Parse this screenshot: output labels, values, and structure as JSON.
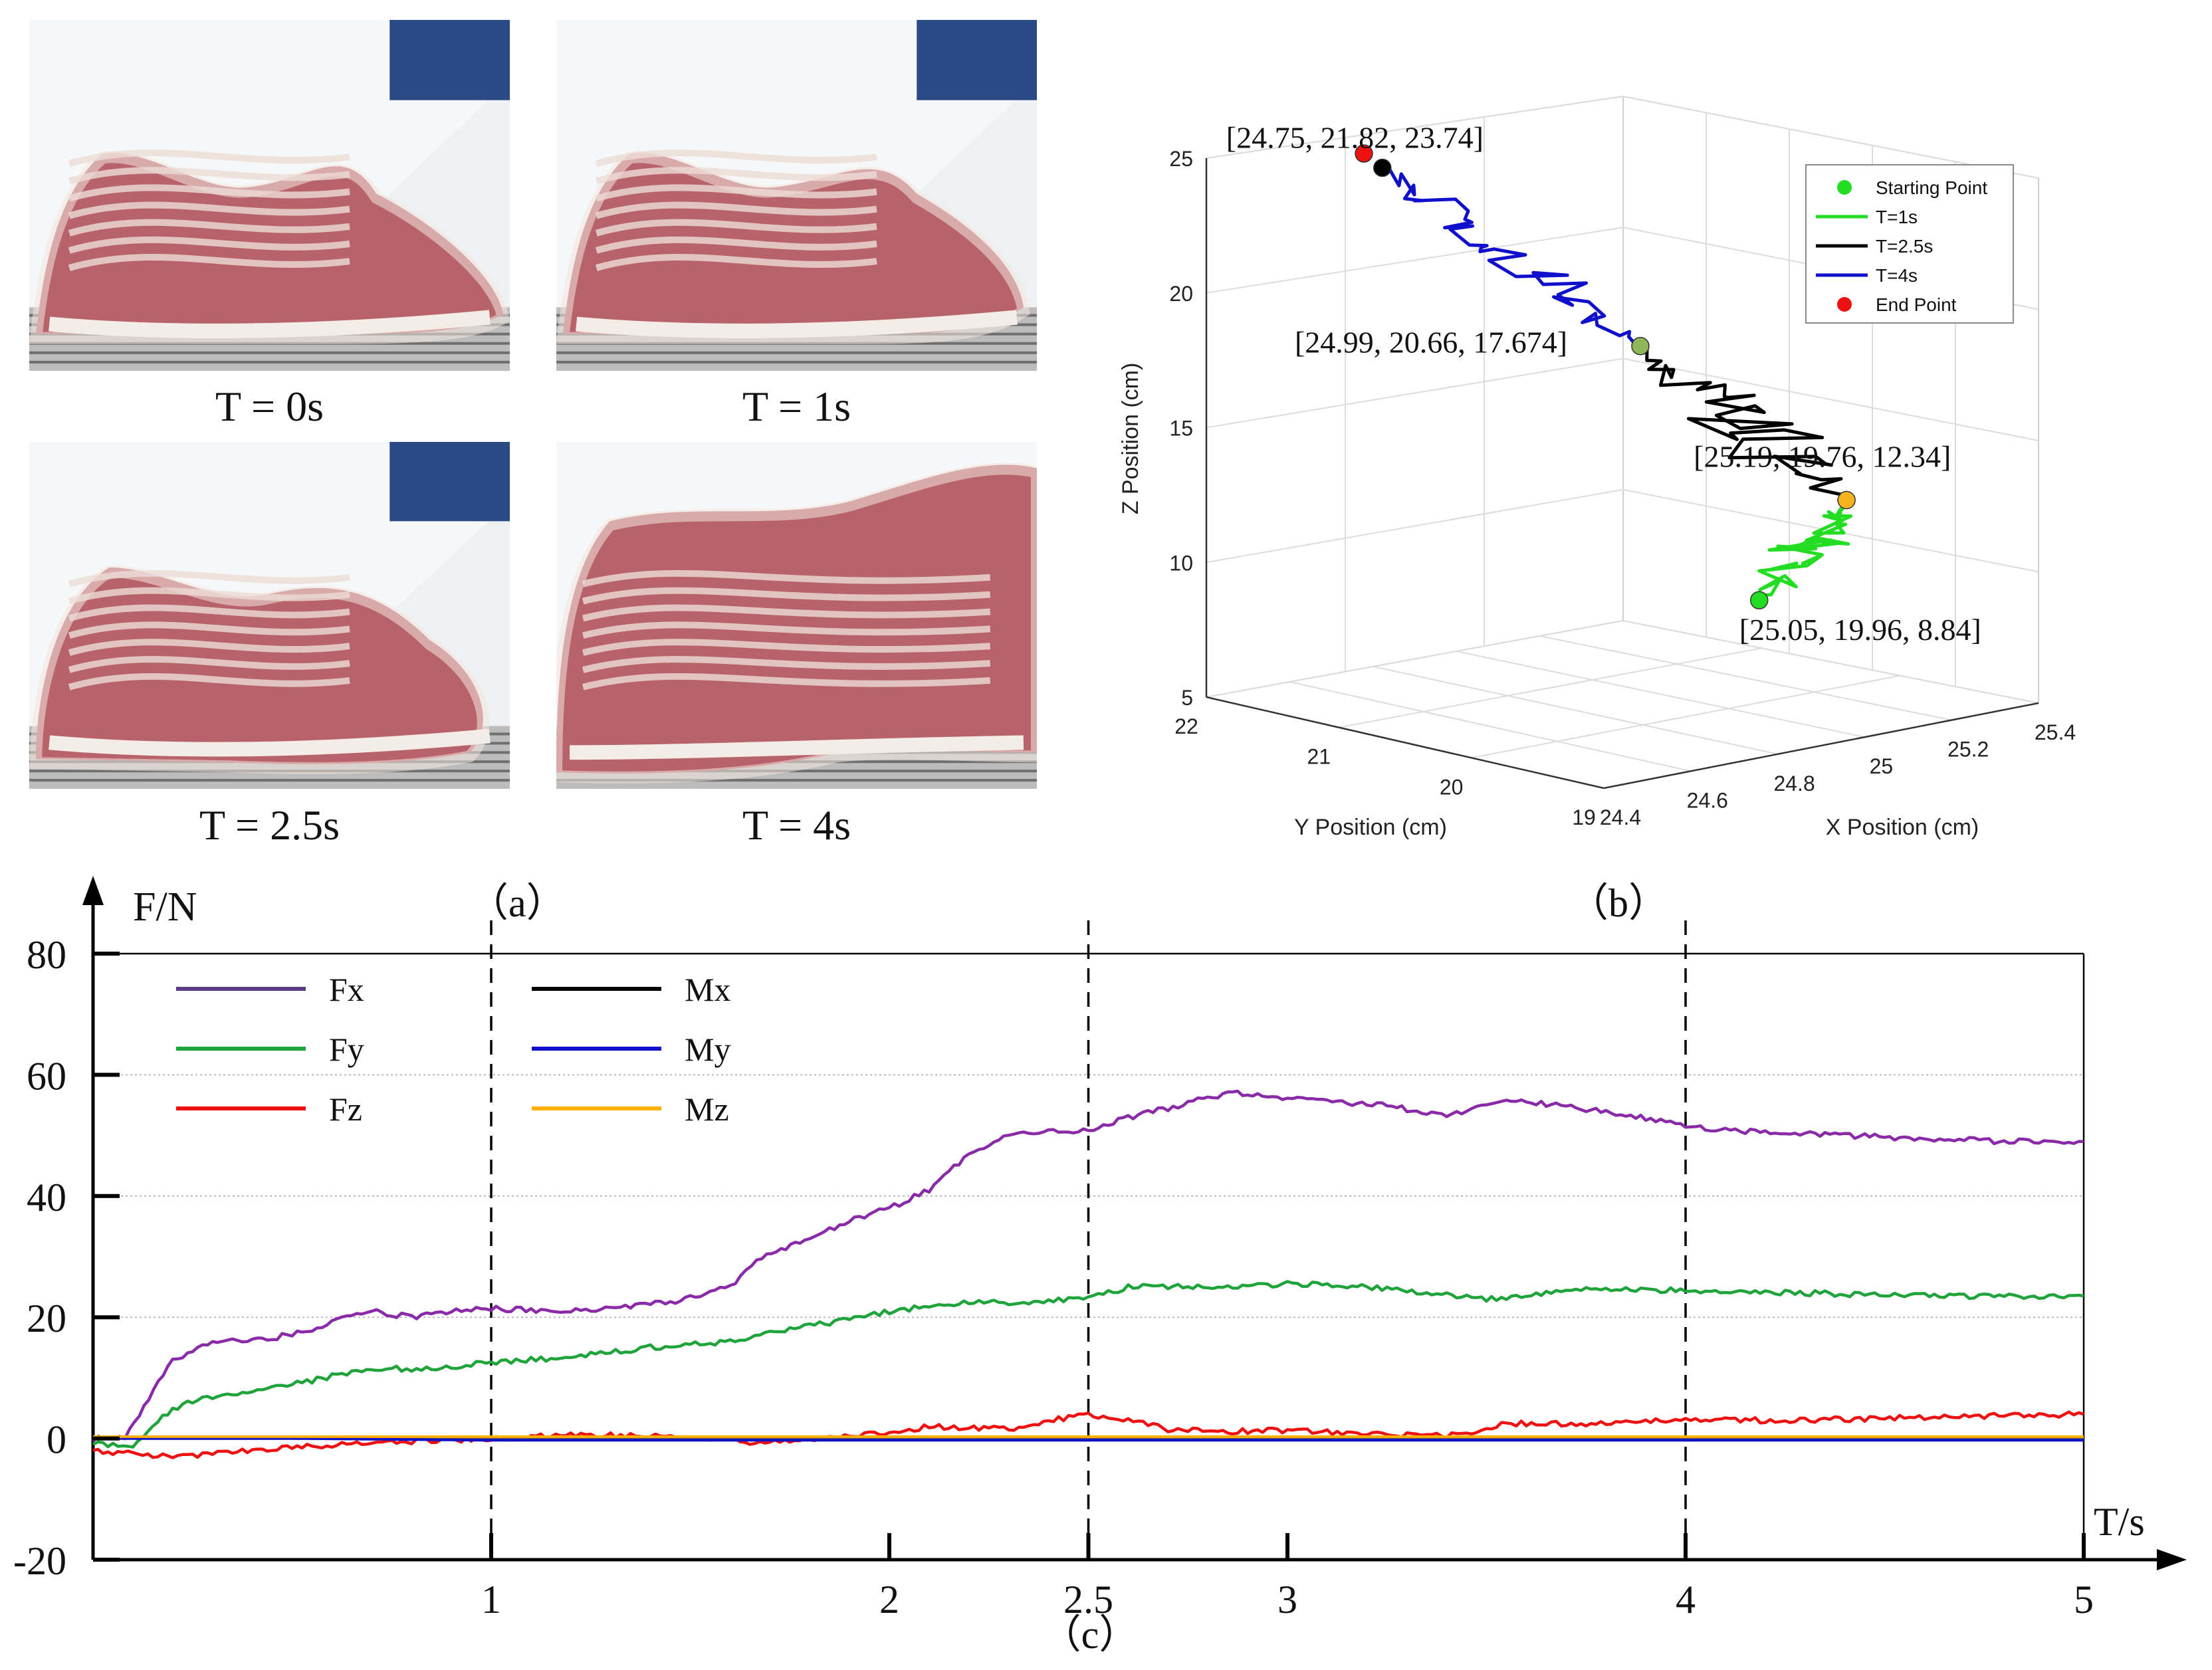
{
  "panel_a": {
    "label": "（a）",
    "photos": [
      {
        "caption": "T = 0s",
        "stage": 0
      },
      {
        "caption": "T = 1s",
        "stage": 1
      },
      {
        "caption": "T = 2.5s",
        "stage": 2
      },
      {
        "caption": "T = 4s",
        "stage": 3
      }
    ]
  },
  "panel_b": {
    "label": "（b）",
    "chart_data": {
      "type": "line3d",
      "xlabel": "X Position (cm)",
      "ylabel": "Y Position (cm)",
      "zlabel": "Z Position (cm)",
      "xticks": [
        "24.4",
        "24.6",
        "24.8",
        "25",
        "25.2",
        "25.4"
      ],
      "yticks": [
        "19",
        "20",
        "21",
        "22"
      ],
      "zticks": [
        "5",
        "10",
        "15",
        "20",
        "25"
      ],
      "xlim": [
        24.4,
        25.4
      ],
      "ylim": [
        19,
        22
      ],
      "zlim": [
        5,
        25
      ],
      "legend": {
        "position": "top-right",
        "entries": [
          {
            "label": "Starting Point",
            "kind": "marker",
            "color": "#22dd22"
          },
          {
            "label": "T=1s",
            "kind": "line",
            "color": "#22dd22"
          },
          {
            "label": "T=2.5s",
            "kind": "line",
            "color": "#000000"
          },
          {
            "label": "T=4s",
            "kind": "line",
            "color": "#1010cc"
          },
          {
            "label": "End Point",
            "kind": "marker",
            "color": "#ee1111"
          }
        ]
      },
      "series": [
        {
          "name": "T=1s",
          "color": "#22dd22",
          "segment_from": "start",
          "segment_to": "p1"
        },
        {
          "name": "T=2.5s",
          "color": "#000000",
          "segment_from": "p1",
          "segment_to": "p2"
        },
        {
          "name": "T=4s",
          "color": "#1010cc",
          "segment_from": "p2",
          "segment_to": "p3"
        }
      ],
      "points": {
        "start": {
          "coords": [
            25.05,
            19.96,
            8.84
          ],
          "label": "[25.05, 19.96, 8.84]",
          "color": "#22dd22"
        },
        "p1": {
          "coords": [
            25.19,
            19.76,
            12.34
          ],
          "label": "[25.19, 19.76, 12.34]",
          "color": "#f5b41e"
        },
        "p2": {
          "coords": [
            24.99,
            20.66,
            17.674
          ],
          "label": "[24.99, 20.66, 17.674]",
          "color": "#8fb85a"
        },
        "p3": {
          "coords": [
            24.75,
            21.82,
            23.74
          ],
          "label": "[24.75, 21.82, 23.74]",
          "color": "#000000"
        },
        "end": {
          "coords": [
            24.6,
            21.9,
            25.0
          ],
          "color": "#ee1111"
        }
      }
    }
  },
  "panel_c": {
    "label": "（c）",
    "chart_data": {
      "type": "line",
      "ylabel": "F/N",
      "xlabel": "T/s",
      "xlim": [
        0,
        5
      ],
      "ylim": [
        -20,
        80
      ],
      "yticks": [
        -20,
        0,
        20,
        40,
        60,
        80
      ],
      "xticks": [
        "1",
        "2",
        "2.5",
        "3",
        "4",
        "5"
      ],
      "xtick_values": [
        1,
        2,
        2.5,
        3,
        4,
        5
      ],
      "gridlines_y": [
        20,
        40,
        60
      ],
      "vlines": [
        1,
        2.5,
        4
      ],
      "legend_entries": [
        {
          "name": "Fx",
          "color": "#5b3c88"
        },
        {
          "name": "Fy",
          "color": "#1fa33b"
        },
        {
          "name": "Fz",
          "color": "#ee1111"
        },
        {
          "name": "Mx",
          "color": "#000000"
        },
        {
          "name": "My",
          "color": "#1010cc"
        },
        {
          "name": "Mz",
          "color": "#ffb000"
        }
      ],
      "series": [
        {
          "name": "Fx",
          "display_color": "#8a2aa8",
          "x": [
            0,
            0.08,
            0.2,
            0.3,
            0.45,
            0.55,
            0.65,
            0.7,
            0.8,
            0.9,
            1.0,
            1.15,
            1.3,
            1.45,
            1.6,
            1.68,
            1.8,
            1.9,
            2.0,
            2.1,
            2.2,
            2.3,
            2.4,
            2.5,
            2.6,
            2.7,
            2.85,
            2.95,
            3.1,
            3.25,
            3.4,
            3.5,
            3.6,
            3.8,
            4.0,
            4.2,
            4.4,
            4.6,
            4.8,
            5.0
          ],
          "y": [
            0,
            0,
            13,
            16,
            16.5,
            18,
            20.5,
            21,
            20,
            21,
            21.5,
            21,
            21.5,
            22.5,
            25,
            30,
            33,
            36,
            38,
            41,
            47,
            50,
            50.5,
            51,
            53,
            54.5,
            57,
            56.5,
            55.5,
            55,
            53,
            55.5,
            55.5,
            54,
            51.5,
            50.5,
            50,
            49.5,
            49,
            49
          ]
        },
        {
          "name": "Fy",
          "display_color": "#1fa33b",
          "x": [
            0,
            0.1,
            0.2,
            0.3,
            0.4,
            0.55,
            0.65,
            0.75,
            0.85,
            1.0,
            1.2,
            1.4,
            1.6,
            1.8,
            2.0,
            2.2,
            2.35,
            2.5,
            2.6,
            2.8,
            3.0,
            3.2,
            3.35,
            3.5,
            3.7,
            4.0,
            4.3,
            4.6,
            5.0
          ],
          "y": [
            -1,
            -1,
            5,
            7,
            8,
            9.5,
            11,
            11.5,
            11.5,
            12.5,
            13.5,
            15,
            16,
            18.5,
            21,
            22.5,
            22.5,
            23,
            25,
            25,
            25.5,
            25,
            24,
            23,
            24.5,
            24.5,
            24,
            23.5,
            23.5
          ]
        },
        {
          "name": "Fz",
          "display_color": "#ee1111",
          "x": [
            0,
            0.2,
            0.4,
            0.6,
            0.8,
            1.0,
            1.2,
            1.4,
            1.6,
            1.65,
            1.8,
            2.0,
            2.1,
            2.3,
            2.4,
            2.5,
            2.6,
            2.7,
            2.85,
            2.95,
            3.1,
            3.3,
            3.45,
            3.55,
            3.75,
            4.0,
            4.3,
            4.6,
            5.0
          ],
          "y": [
            -2,
            -3,
            -2,
            -1,
            -0.5,
            0,
            0.5,
            0.5,
            0,
            -1,
            0,
            1,
            2,
            1.5,
            3,
            4,
            3,
            1.5,
            1,
            1.5,
            1,
            0.5,
            0.5,
            2.5,
            2.5,
            3,
            3,
            3.5,
            4
          ]
        },
        {
          "name": "Mx",
          "display_color": "#555555",
          "x": [
            0,
            0.5,
            1.0,
            2.0,
            3.0,
            4.0,
            5.0
          ],
          "y": [
            0,
            0,
            0,
            0,
            0,
            0,
            0
          ]
        },
        {
          "name": "My",
          "display_color": "#1010cc",
          "x": [
            0,
            0.5,
            1.0,
            2.0,
            3.0,
            4.0,
            5.0
          ],
          "y": [
            0,
            0,
            -0.3,
            -0.3,
            -0.3,
            -0.3,
            -0.3
          ]
        },
        {
          "name": "Mz",
          "display_color": "#ffb000",
          "x": [
            0,
            0.5,
            1.0,
            2.0,
            3.0,
            4.0,
            5.0
          ],
          "y": [
            0.3,
            0.3,
            0.3,
            0.3,
            0.3,
            0.3,
            0.3
          ]
        }
      ]
    }
  }
}
